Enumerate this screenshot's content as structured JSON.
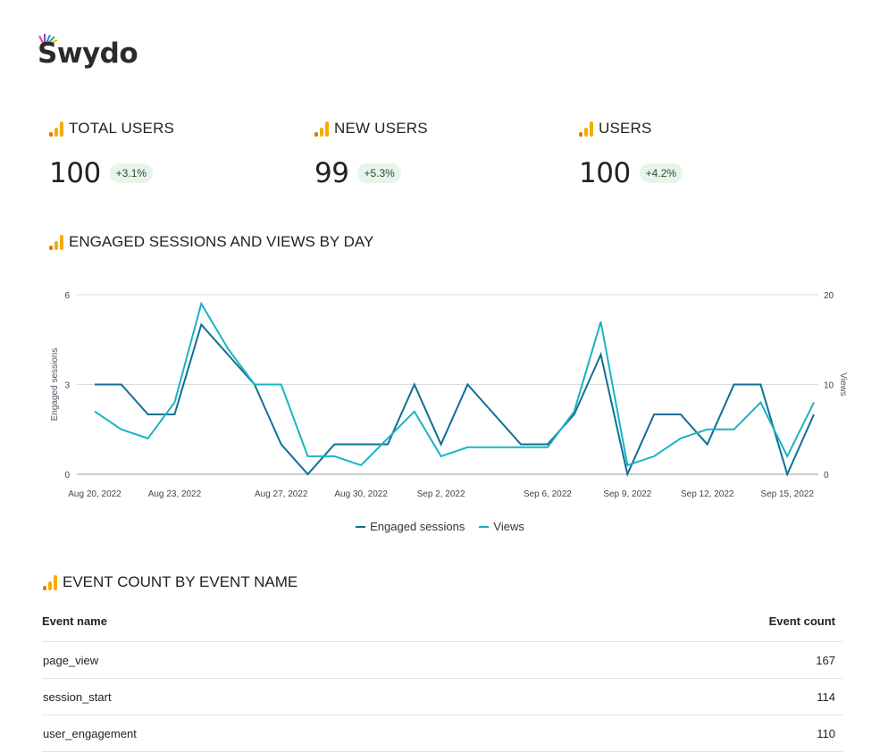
{
  "brand": {
    "name": "Swydo"
  },
  "kpis": [
    {
      "title": "TOTAL USERS",
      "value": "100",
      "change": "+3.1%"
    },
    {
      "title": "NEW USERS",
      "value": "99",
      "change": "+5.3%"
    },
    {
      "title": "USERS",
      "value": "100",
      "change": "+4.2%"
    }
  ],
  "chart_section": {
    "title": "ENGAGED SESSIONS AND VIEWS BY DAY"
  },
  "chart_data": {
    "type": "line",
    "title": "ENGAGED SESSIONS AND VIEWS BY DAY",
    "x": [
      "2022-08-20",
      "2022-08-21",
      "2022-08-22",
      "2022-08-23",
      "2022-08-24",
      "2022-08-25",
      "2022-08-26",
      "2022-08-27",
      "2022-08-28",
      "2022-08-29",
      "2022-08-30",
      "2022-08-31",
      "2022-09-01",
      "2022-09-02",
      "2022-09-03",
      "2022-09-04",
      "2022-09-05",
      "2022-09-06",
      "2022-09-07",
      "2022-09-08",
      "2022-09-09",
      "2022-09-10",
      "2022-09-11",
      "2022-09-12",
      "2022-09-13",
      "2022-09-14",
      "2022-09-15",
      "2022-09-16"
    ],
    "x_tick_labels": [
      "Aug 20, 2022",
      "Aug 23, 2022",
      "Aug 27, 2022",
      "Aug 30, 2022",
      "Sep 2, 2022",
      "Sep 6, 2022",
      "Sep 9, 2022",
      "Sep 12, 2022",
      "Sep 15, 2022"
    ],
    "x_tick_dates": [
      "2022-08-20",
      "2022-08-23",
      "2022-08-27",
      "2022-08-30",
      "2022-09-02",
      "2022-09-06",
      "2022-09-09",
      "2022-09-12",
      "2022-09-15"
    ],
    "series": [
      {
        "name": "Engaged sessions",
        "axis": "left",
        "color": "#0e6f95",
        "values": [
          3,
          3,
          2,
          2,
          5,
          4,
          3,
          1,
          0,
          1,
          1,
          1,
          3,
          1,
          3,
          2,
          1,
          1,
          2,
          4,
          0,
          2,
          2,
          1,
          3,
          3,
          0,
          2
        ]
      },
      {
        "name": "Views",
        "axis": "right",
        "color": "#1ab3c2",
        "values": [
          7,
          5,
          4,
          8,
          19,
          14,
          10,
          10,
          2,
          2,
          1,
          4,
          7,
          2,
          3,
          3,
          3,
          3,
          7,
          17,
          1,
          2,
          4,
          5,
          5,
          8,
          2,
          8
        ]
      }
    ],
    "ylabel": "Engaged sessions",
    "ylabel_right": "Views",
    "ylim": [
      0,
      6
    ],
    "yticks": [
      "0",
      "3",
      "6"
    ],
    "ylim_right": [
      0,
      20
    ],
    "yticks_right": [
      "0",
      "10",
      "20"
    ],
    "grid": true,
    "legend_position": "bottom"
  },
  "table_section": {
    "title": "EVENT COUNT BY EVENT NAME",
    "columns": [
      "Event name",
      "Event count"
    ],
    "rows": [
      [
        "page_view",
        "167"
      ],
      [
        "session_start",
        "114"
      ],
      [
        "user_engagement",
        "110"
      ]
    ]
  }
}
